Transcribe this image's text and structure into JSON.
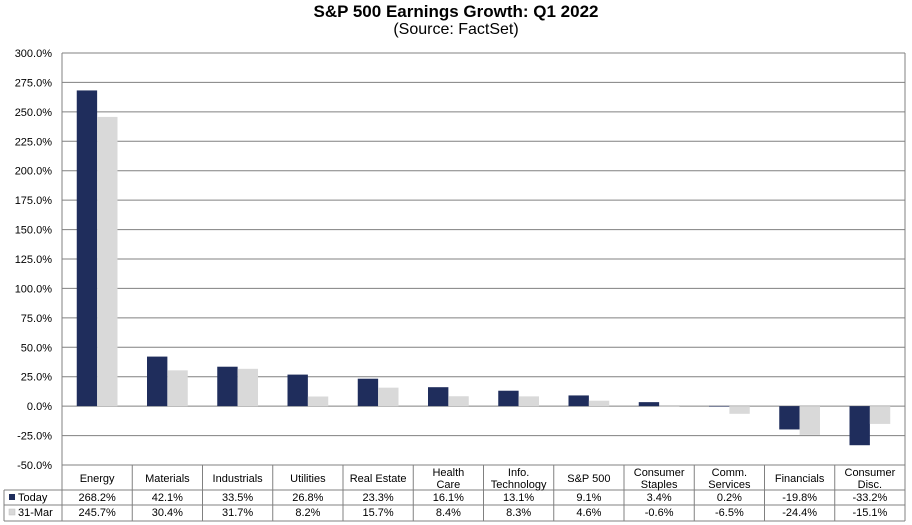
{
  "chart_data": {
    "type": "bar",
    "title": "S&P 500 Earnings Growth: Q1 2022",
    "subtitle": "(Source: FactSet)",
    "categories": [
      [
        "Energy"
      ],
      [
        "Materials"
      ],
      [
        "Industrials"
      ],
      [
        "Utilities"
      ],
      [
        "Real Estate"
      ],
      [
        "Health",
        "Care"
      ],
      [
        "Info.",
        "Technology"
      ],
      [
        "S&P 500"
      ],
      [
        "Consumer",
        "Staples"
      ],
      [
        "Comm.",
        "Services"
      ],
      [
        "Financials"
      ],
      [
        "Consumer",
        "Disc."
      ]
    ],
    "series": [
      {
        "name": "Today",
        "color": "#1f2d5c",
        "values": [
          268.2,
          42.1,
          33.5,
          26.8,
          23.3,
          16.1,
          13.1,
          9.1,
          3.4,
          0.2,
          -19.8,
          -33.2
        ],
        "labels": [
          "268.2%",
          "42.1%",
          "33.5%",
          "26.8%",
          "23.3%",
          "16.1%",
          "13.1%",
          "9.1%",
          "3.4%",
          "0.2%",
          "-19.8%",
          "-33.2%"
        ]
      },
      {
        "name": "31-Mar",
        "color": "#d9d9d9",
        "values": [
          245.7,
          30.4,
          31.7,
          8.2,
          15.7,
          8.4,
          8.3,
          4.6,
          -0.6,
          -6.5,
          -24.4,
          -15.1
        ],
        "labels": [
          "245.7%",
          "30.4%",
          "31.7%",
          "8.2%",
          "15.7%",
          "8.4%",
          "8.3%",
          "4.6%",
          "-0.6%",
          "-6.5%",
          "-24.4%",
          "-15.1%"
        ]
      }
    ],
    "ylim": [
      -50,
      300
    ],
    "yticks": [
      -50,
      -25,
      0,
      25,
      50,
      75,
      100,
      125,
      150,
      175,
      200,
      225,
      250,
      275,
      300
    ],
    "ytick_labels": [
      "-50.0%",
      "-25.0%",
      "0.0%",
      "25.0%",
      "50.0%",
      "75.0%",
      "100.0%",
      "125.0%",
      "150.0%",
      "175.0%",
      "200.0%",
      "225.0%",
      "250.0%",
      "275.0%",
      "300.0%"
    ],
    "grid": true,
    "legend": "data-table",
    "gridline_color": "#808080"
  }
}
